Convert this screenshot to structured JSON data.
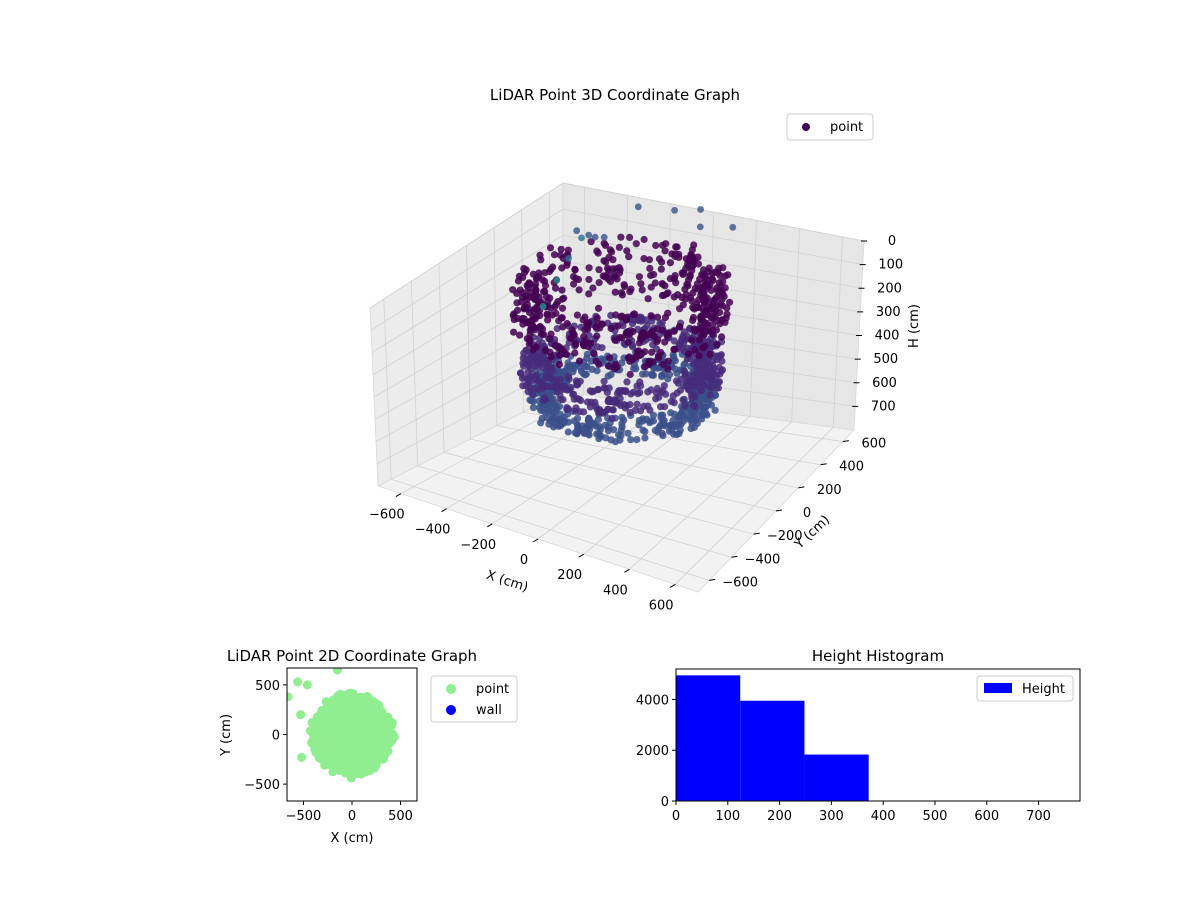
{
  "chart_data": [
    {
      "type": "scatter",
      "title": "LiDAR Point 3D Coordinate Graph",
      "xlabel": "X (cm)",
      "ylabel": "Y (cm)",
      "zlabel": "H (cm)",
      "xlim": [
        -700,
        700
      ],
      "ylim": [
        -700,
        700
      ],
      "zlim": [
        0,
        800
      ],
      "xticks": [
        -600,
        -400,
        -200,
        0,
        200,
        400,
        600
      ],
      "yticks": [
        -600,
        -400,
        -200,
        0,
        200,
        400,
        600
      ],
      "zticks": [
        0,
        100,
        200,
        300,
        400,
        500,
        600,
        700
      ],
      "z_axis_inverted": true,
      "grid": true,
      "legend": {
        "position": "top-right",
        "entries": [
          "point"
        ]
      },
      "series": [
        {
          "name": "point",
          "colormap": "viridis",
          "ring_clusters": [
            {
              "cx": 0,
              "cy": 0,
              "radius": 400,
              "h_min": 0,
              "h_max": 230,
              "color": "#440154"
            },
            {
              "cx": 0,
              "cy": 0,
              "radius": 380,
              "h_min": 300,
              "h_max": 420,
              "color": "#472c7a"
            },
            {
              "cx": 0,
              "cy": 0,
              "radius": 360,
              "h_min": 440,
              "h_max": 520,
              "color": "#3b4f8a"
            }
          ],
          "outliers": [
            {
              "x": -640,
              "y": 560,
              "h": 320
            },
            {
              "x": -560,
              "y": 520,
              "h": 210
            },
            {
              "x": -500,
              "y": 520,
              "h": 120
            },
            {
              "x": -460,
              "y": 420,
              "h": 50
            },
            {
              "x": -380,
              "y": 380,
              "h": 40
            },
            {
              "x": -320,
              "y": 330,
              "h": 20
            },
            {
              "x": -260,
              "y": 300,
              "h": 0
            },
            {
              "x": -480,
              "y": 200,
              "h": 280
            },
            {
              "x": -300,
              "y": 620,
              "h": 0
            },
            {
              "x": -150,
              "y": 650,
              "h": 0
            },
            {
              "x": -60,
              "y": 700,
              "h": 0
            },
            {
              "x": 30,
              "y": 550,
              "h": 0
            },
            {
              "x": 150,
              "y": 600,
              "h": 0
            }
          ]
        }
      ]
    },
    {
      "type": "scatter",
      "title": "LiDAR Point 2D Coordinate Graph",
      "xlabel": "X (cm)",
      "ylabel": "Y (cm)",
      "xlim": [
        -670,
        670
      ],
      "ylim": [
        -670,
        670
      ],
      "xticks": [
        -500,
        0,
        500
      ],
      "yticks": [
        -500,
        0,
        500
      ],
      "legend": {
        "position": "outside-right",
        "entries": [
          "point",
          "wall"
        ]
      },
      "series": [
        {
          "name": "point",
          "color": "#90ee90",
          "cluster": {
            "cx": 0,
            "cy": 0,
            "radius": 420
          },
          "outliers": [
            [
              -660,
              380
            ],
            [
              -560,
              530
            ],
            [
              -460,
              500
            ],
            [
              -530,
              200
            ],
            [
              -520,
              -230
            ],
            [
              -150,
              650
            ]
          ]
        },
        {
          "name": "wall",
          "color": "#0000ff",
          "points": []
        }
      ]
    },
    {
      "type": "bar",
      "title": "Height Histogram",
      "xlabel": "",
      "ylabel": "",
      "bins": [
        [
          0,
          124
        ],
        [
          124,
          248
        ],
        [
          248,
          372
        ]
      ],
      "values": [
        4950,
        3950,
        1830
      ],
      "xlim": [
        0,
        780
      ],
      "ylim": [
        0,
        5200
      ],
      "xticks": [
        0,
        100,
        200,
        300,
        400,
        500,
        600,
        700
      ],
      "yticks": [
        0,
        2000,
        4000
      ],
      "legend": {
        "position": "top-right",
        "entries": [
          "Height"
        ]
      },
      "series": [
        {
          "name": "Height",
          "color": "#0000ff"
        }
      ]
    }
  ]
}
